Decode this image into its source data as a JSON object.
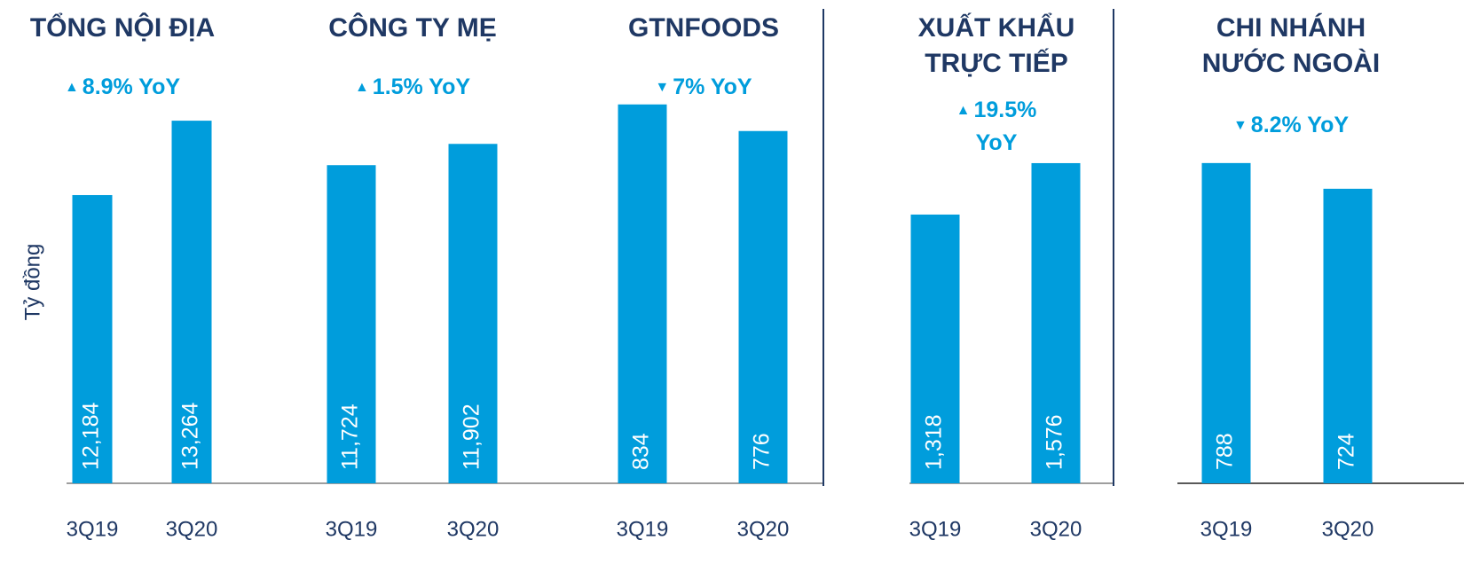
{
  "y_label": "Tỷ đồng",
  "chart_data": [
    {
      "type": "bar",
      "title": "TỔNG NỘI ĐỊA",
      "annotation": "8.9% YoY",
      "direction": "up",
      "color": "#009ddc",
      "categories": [
        "3Q19",
        "3Q20"
      ],
      "values": [
        12184,
        13264
      ],
      "value_labels": [
        "12,184",
        "13,264"
      ],
      "ylim": [
        8000,
        13600
      ]
    },
    {
      "type": "bar",
      "title": "CÔNG TY MẸ",
      "annotation": "1.5% YoY",
      "direction": "up",
      "color": "#009ddc",
      "categories": [
        "3Q19",
        "3Q20"
      ],
      "values": [
        11724,
        11902
      ],
      "value_labels": [
        "11,724",
        "11,902"
      ],
      "ylim": [
        9060,
        12290
      ]
    },
    {
      "type": "bar",
      "title": "GTNFOODS",
      "annotation": "7% YoY",
      "direction": "down",
      "color": "#009ddc",
      "categories": [
        "3Q19",
        "3Q20"
      ],
      "values": [
        834,
        776
      ],
      "ylim": [
        8,
        849
      ]
    },
    {
      "type": "bar",
      "title": "XUẤT KHẨU TRỰC TIẾP",
      "annotation": "19.5% YoY",
      "direction": "up",
      "color": "#009ddc",
      "categories": [
        "3Q19",
        "3Q20"
      ],
      "values": [
        1318,
        1576
      ],
      "value_labels": [
        "1,318",
        "1,576"
      ],
      "ylim": [
        -30,
        1905
      ]
    },
    {
      "type": "bar",
      "title": "CHI NHÁNH NƯỚC NGOÀI",
      "annotation": "8.2% YoY",
      "direction": "down",
      "color": "#009ddc",
      "categories": [
        "3Q19",
        "3Q20"
      ],
      "values": [
        788,
        724
      ],
      "ylim": [
        -9,
        951
      ]
    }
  ]
}
